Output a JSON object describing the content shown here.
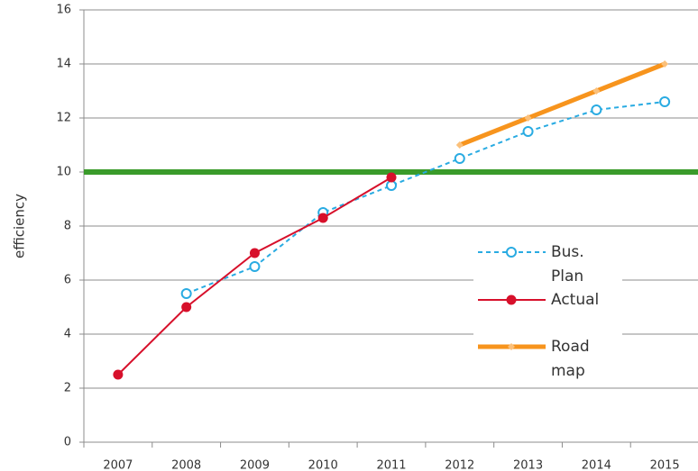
{
  "chart_data": {
    "type": "line",
    "y_label": "efficiency",
    "categories": [
      "2007",
      "2008",
      "2009",
      "2010",
      "2011",
      "2012",
      "2013",
      "2014",
      "2015"
    ],
    "series": [
      {
        "name": "Bus. Plan",
        "color": "#29abe2",
        "dashed": true,
        "marker": "open-circle",
        "values": [
          null,
          5.5,
          6.5,
          8.5,
          9.5,
          10.5,
          11.5,
          12.3,
          12.6
        ]
      },
      {
        "name": "Actual",
        "color": "#d7102b",
        "dashed": false,
        "marker": "filled-circle",
        "values": [
          2.5,
          5.0,
          7.0,
          8.3,
          9.8,
          null,
          null,
          null,
          null
        ]
      },
      {
        "name": "Road map",
        "color": "#f7941d",
        "dashed": false,
        "marker": "diamond",
        "values": [
          null,
          null,
          null,
          null,
          null,
          11,
          12,
          13,
          14
        ]
      }
    ],
    "reference_line": {
      "value": 10,
      "color": "#3a9b2a"
    },
    "ylim": [
      0,
      16
    ],
    "yticks": [
      0,
      2,
      4,
      6,
      8,
      10,
      12,
      14,
      16
    ],
    "grid": true
  }
}
